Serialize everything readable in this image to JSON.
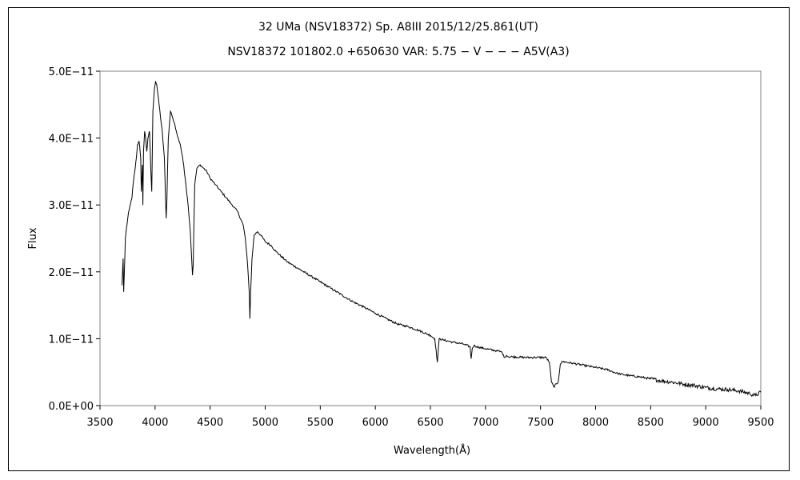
{
  "chart_data": {
    "type": "line",
    "title": "32 UMa (NSV18372)    Sp. A8III    2015/12/25.861(UT)",
    "subtitle": "NSV18372 101802.0 +650630 VAR: 5.75 − V − − − A5V(A3)",
    "xlabel": "Wavelength(Å)",
    "ylabel": "Flux",
    "xlim": [
      3500,
      9500
    ],
    "ylim": [
      0,
      5e-11
    ],
    "x_ticks": [
      "3500",
      "4000",
      "4500",
      "5000",
      "5500",
      "6000",
      "6500",
      "7000",
      "7500",
      "8000",
      "8500",
      "9000",
      "9500"
    ],
    "y_ticks": [
      "0.0E+00",
      "1.0E−11",
      "2.0E−11",
      "3.0E−11",
      "4.0E−11",
      "5.0E−11"
    ],
    "grid": false,
    "legend": "none",
    "line_color": "#000000",
    "series": [
      {
        "x": [
          3700,
          3710,
          3715,
          3725,
          3730,
          3745,
          3760,
          3775,
          3790,
          3800,
          3815,
          3830,
          3840,
          3855,
          3870,
          3875,
          3885,
          3889,
          3895,
          3905,
          3915,
          3925,
          3935,
          3950,
          3962,
          3970,
          3980,
          3995,
          4005,
          4015,
          4030,
          4050,
          4065,
          4085,
          4095,
          4101,
          4108,
          4120,
          4140,
          4160,
          4180,
          4200,
          4230,
          4260,
          4280,
          4300,
          4320,
          4335,
          4340,
          4346,
          4360,
          4380,
          4410,
          4440,
          4470,
          4500,
          4550,
          4600,
          4650,
          4700,
          4750,
          4800,
          4820,
          4840,
          4855,
          4861,
          4868,
          4880,
          4900,
          4930,
          4960,
          5000,
          5050,
          5100,
          5200,
          5300,
          5400,
          5500,
          5600,
          5700,
          5800,
          5900,
          6000,
          6100,
          6200,
          6300,
          6400,
          6500,
          6540,
          6563,
          6580,
          6620,
          6700,
          6800,
          6860,
          6870,
          6880,
          6895,
          6920,
          7000,
          7100,
          7150,
          7170,
          7190,
          7210,
          7250,
          7350,
          7450,
          7550,
          7580,
          7600,
          7620,
          7660,
          7680,
          7700,
          7800,
          7900,
          8000,
          8100,
          8200,
          8300,
          8400,
          8500,
          8600,
          8700,
          8800,
          8900,
          9000,
          9100,
          9200,
          9300,
          9400,
          9450,
          9500
        ],
        "y": [
          1.8e-11,
          2.2e-11,
          1.7e-11,
          2.2e-11,
          2.5e-11,
          2.7e-11,
          2.9e-11,
          3e-11,
          3.1e-11,
          3.3e-11,
          3.5e-11,
          3.7e-11,
          3.9e-11,
          3.95e-11,
          3.7e-11,
          3.2e-11,
          3.6e-11,
          3e-11,
          3.8e-11,
          4.1e-11,
          4e-11,
          3.8e-11,
          4e-11,
          4.1e-11,
          3.5e-11,
          3.2e-11,
          4.4e-11,
          4.75e-11,
          4.85e-11,
          4.8e-11,
          4.6e-11,
          4.3e-11,
          4.1e-11,
          3.7e-11,
          3.1e-11,
          2.8e-11,
          3.1e-11,
          4e-11,
          4.4e-11,
          4.3e-11,
          4.2e-11,
          4.05e-11,
          3.9e-11,
          3.6e-11,
          3.3e-11,
          3e-11,
          2.6e-11,
          2.1e-11,
          1.95e-11,
          2.1e-11,
          3.3e-11,
          3.55e-11,
          3.6e-11,
          3.55e-11,
          3.5e-11,
          3.4e-11,
          3.3e-11,
          3.2e-11,
          3.1e-11,
          3e-11,
          2.9e-11,
          2.7e-11,
          2.5e-11,
          2.1e-11,
          1.7e-11,
          1.3e-11,
          1.7e-11,
          2.2e-11,
          2.55e-11,
          2.6e-11,
          2.55e-11,
          2.45e-11,
          2.4e-11,
          2.3e-11,
          2.15e-11,
          2.05e-11,
          1.95e-11,
          1.85e-11,
          1.75e-11,
          1.65e-11,
          1.55e-11,
          1.47e-11,
          1.38e-11,
          1.3e-11,
          1.22e-11,
          1.18e-11,
          1.12e-11,
          1.05e-11,
          1e-11,
          6.5e-12,
          1e-11,
          9.8e-12,
          9.5e-12,
          9.2e-12,
          8.8e-12,
          7e-12,
          8.5e-12,
          9e-12,
          8.8e-12,
          8.5e-12,
          8.2e-12,
          8e-12,
          7.2e-12,
          7.5e-12,
          7.3e-12,
          7.3e-12,
          7.2e-12,
          7.2e-12,
          7.2e-12,
          6.5e-12,
          3.5e-12,
          2.8e-12,
          3.5e-12,
          6.2e-12,
          6.6e-12,
          6.3e-12,
          6e-12,
          5.7e-12,
          5.4e-12,
          4.8e-12,
          4.5e-12,
          4.3e-12,
          4e-12,
          3.7e-12,
          3.5e-12,
          3.2e-12,
          3e-12,
          2.7e-12,
          2.5e-12,
          2.4e-12,
          2.2e-12,
          1.8e-12,
          1.5e-12,
          2e-12
        ]
      }
    ]
  }
}
